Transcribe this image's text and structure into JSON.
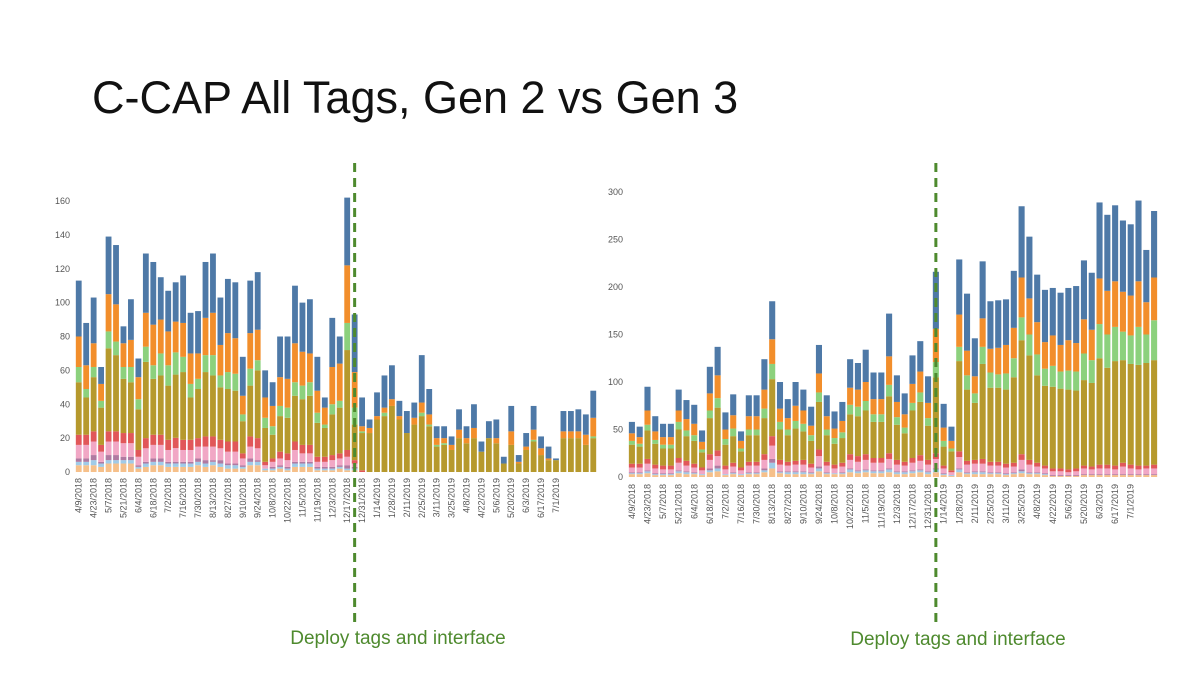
{
  "title": "C-CAP All Tags, Gen 2 vs Gen 3",
  "colors": {
    "blue": "#4e79a7",
    "orange": "#f28e2b",
    "green_light": "#8cd17d",
    "olive": "#b6992d",
    "red": "#e15759",
    "pink": "#f1a7c5",
    "peach": "#f6c08a",
    "lightblue": "#a0cbe8",
    "purple": "#b07aa1",
    "deploy_line": "#4e8a2e",
    "axis_text": "#555555"
  },
  "chart_data": [
    {
      "type": "bar",
      "stacked": true,
      "title": "",
      "xlabel": "",
      "ylabel": "",
      "ylim": [
        0,
        160
      ],
      "yticks": [
        0,
        20,
        40,
        60,
        80,
        100,
        120,
        140,
        160
      ],
      "x_tick_labels": [
        "4/9/2018",
        "4/23/2018",
        "5/7/2018",
        "5/21/2018",
        "6/4/2018",
        "6/18/2018",
        "7/2/2018",
        "7/16/2018",
        "7/30/2018",
        "8/13/2018",
        "8/27/2018",
        "9/10/2018",
        "9/24/2018",
        "10/8/2018",
        "10/22/2018",
        "11/5/2018",
        "11/19/2018",
        "12/3/2018",
        "12/17/2018",
        "12/31/2018",
        "1/14/2019",
        "1/28/2019",
        "2/11/2019",
        "2/25/2019",
        "3/11/2019",
        "3/25/2019",
        "4/8/2019",
        "4/22/2019",
        "5/6/2019",
        "5/20/2019",
        "6/3/2019",
        "6/17/2019",
        "7/1/2019"
      ],
      "totals": [
        113,
        88,
        103,
        62,
        139,
        134,
        86,
        102,
        67,
        129,
        124,
        115,
        107,
        112,
        116,
        94,
        95,
        124,
        129,
        103,
        114,
        112,
        68,
        113,
        118,
        60,
        53,
        80,
        80,
        110,
        100,
        102,
        68,
        44,
        91,
        80,
        162,
        93,
        44,
        31,
        47,
        57,
        63,
        42,
        36,
        41,
        69,
        49,
        27,
        27,
        21,
        37,
        27,
        40,
        18,
        30,
        31,
        9,
        39,
        10,
        23,
        39,
        21,
        15,
        8,
        36,
        36,
        37,
        34,
        48
      ],
      "blue": [
        33,
        25,
        27,
        10,
        34,
        35,
        10,
        24,
        11,
        35,
        37,
        25,
        24,
        23,
        28,
        24,
        25,
        33,
        35,
        28,
        32,
        33,
        23,
        31,
        34,
        16,
        14,
        24,
        25,
        34,
        29,
        32,
        20,
        6,
        29,
        16,
        40,
        34,
        17,
        5,
        14,
        19,
        20,
        9,
        13,
        9,
        28,
        15,
        7,
        7,
        5,
        12,
        7,
        14,
        6,
        10,
        11,
        4,
        15,
        4,
        8,
        14,
        7,
        7,
        1,
        12,
        12,
        13,
        12,
        16
      ],
      "orange": [
        18,
        14,
        14,
        10,
        22,
        22,
        14,
        16,
        13,
        20,
        24,
        20,
        20,
        18,
        20,
        18,
        15,
        22,
        25,
        18,
        23,
        21,
        11,
        21,
        18,
        12,
        12,
        17,
        17,
        23,
        20,
        17,
        13,
        10,
        22,
        22,
        34,
        21,
        3,
        3,
        2,
        3,
        4,
        2,
        0,
        4,
        6,
        6,
        4,
        3,
        3,
        5,
        3,
        6,
        0,
        0,
        3,
        0,
        8,
        1,
        2,
        6,
        4,
        1,
        0,
        4,
        4,
        4,
        6,
        11
      ],
      "green_light": [
        9,
        5,
        6,
        4,
        10,
        8,
        7,
        9,
        6,
        9,
        8,
        13,
        12,
        13,
        9,
        8,
        6,
        10,
        12,
        7,
        10,
        10,
        4,
        10,
        6,
        6,
        5,
        6,
        6,
        8,
        8,
        8,
        6,
        2,
        6,
        4,
        16,
        10,
        1,
        0,
        0,
        2,
        0,
        0,
        0,
        0,
        2,
        1,
        1,
        1,
        0,
        0,
        0,
        0,
        0,
        0,
        0,
        0,
        0,
        0,
        0,
        1,
        0,
        0,
        0,
        0,
        0,
        0,
        0,
        1
      ],
      "olive": [
        31,
        22,
        32,
        22,
        49,
        45,
        32,
        30,
        24,
        45,
        33,
        35,
        32,
        37,
        40,
        25,
        29,
        38,
        36,
        31,
        31,
        30,
        19,
        30,
        40,
        20,
        14,
        21,
        21,
        27,
        27,
        29,
        20,
        17,
        24,
        27,
        59,
        21,
        22,
        23,
        31,
        33,
        39,
        31,
        23,
        28,
        33,
        27,
        15,
        16,
        13,
        20,
        17,
        20,
        12,
        20,
        17,
        5,
        16,
        5,
        13,
        18,
        10,
        7,
        7,
        20,
        20,
        20,
        16,
        20
      ],
      "red": [
        6,
        6,
        6,
        4,
        6,
        6,
        6,
        6,
        4,
        6,
        6,
        6,
        6,
        6,
        6,
        6,
        5,
        6,
        6,
        5,
        6,
        6,
        3,
        6,
        6,
        2,
        2,
        4,
        4,
        5,
        5,
        5,
        3,
        3,
        3,
        3,
        4,
        2,
        1,
        0,
        0,
        0,
        0,
        0,
        0,
        0,
        0,
        0,
        0,
        0,
        0,
        0,
        0,
        0,
        0,
        0,
        0,
        0,
        0,
        0,
        0,
        0,
        0,
        0,
        0,
        0,
        0,
        0,
        0,
        0
      ],
      "pink": [
        8,
        8,
        8,
        6,
        8,
        8,
        8,
        8,
        5,
        8,
        8,
        8,
        7,
        8,
        7,
        7,
        7,
        8,
        8,
        7,
        7,
        7,
        4,
        7,
        7,
        2,
        3,
        4,
        4,
        7,
        5,
        5,
        3,
        3,
        4,
        4,
        5,
        2,
        0,
        0,
        0,
        0,
        0,
        0,
        0,
        0,
        0,
        0,
        0,
        0,
        0,
        0,
        0,
        0,
        0,
        0,
        0,
        0,
        0,
        0,
        0,
        0,
        0,
        0,
        0,
        0,
        0,
        0,
        0,
        0
      ],
      "peach": [
        4,
        4,
        4,
        3,
        5,
        5,
        5,
        5,
        2,
        3,
        4,
        4,
        3,
        3,
        3,
        3,
        4,
        3,
        4,
        3,
        2,
        2,
        2,
        4,
        4,
        1,
        1,
        2,
        1,
        3,
        3,
        3,
        1,
        1,
        1,
        2,
        1,
        1,
        0,
        0,
        0,
        0,
        0,
        0,
        0,
        0,
        0,
        0,
        0,
        0,
        0,
        0,
        0,
        0,
        0,
        0,
        0,
        0,
        0,
        0,
        0,
        0,
        0,
        0,
        0,
        0,
        0,
        0,
        0,
        0
      ],
      "lightblue": [
        2,
        2,
        3,
        2,
        2,
        2,
        2,
        2,
        1,
        2,
        2,
        2,
        2,
        2,
        2,
        2,
        2,
        2,
        2,
        2,
        2,
        2,
        1,
        2,
        2,
        1,
        1,
        1,
        1,
        2,
        2,
        2,
        1,
        1,
        1,
        1,
        1,
        1,
        0,
        0,
        0,
        0,
        0,
        0,
        0,
        0,
        0,
        0,
        0,
        0,
        0,
        0,
        0,
        0,
        0,
        0,
        0,
        0,
        0,
        0,
        0,
        0,
        0,
        0,
        0,
        0,
        0,
        0,
        0,
        0
      ],
      "purple": [
        2,
        2,
        3,
        1,
        3,
        3,
        2,
        2,
        1,
        1,
        2,
        2,
        1,
        1,
        1,
        1,
        2,
        2,
        1,
        2,
        1,
        1,
        1,
        2,
        1,
        0,
        1,
        1,
        1,
        1,
        1,
        1,
        1,
        1,
        1,
        1,
        2,
        1,
        0,
        0,
        0,
        0,
        0,
        0,
        0,
        0,
        0,
        0,
        0,
        0,
        0,
        0,
        0,
        0,
        0,
        0,
        0,
        0,
        0,
        0,
        0,
        0,
        0,
        0,
        0,
        0,
        0,
        0,
        0,
        0
      ],
      "deploy_after_bar": 37,
      "annotation": "Deploy tags and interface"
    },
    {
      "type": "bar",
      "stacked": true,
      "title": "",
      "xlabel": "",
      "ylabel": "",
      "ylim": [
        0,
        300
      ],
      "yticks": [
        0,
        50,
        100,
        150,
        200,
        250,
        300
      ],
      "x_tick_labels": [
        "4/9/2018",
        "4/23/2018",
        "5/7/2018",
        "5/21/2018",
        "6/4/2018",
        "6/18/2018",
        "7/2/2018",
        "7/16/2018",
        "7/30/2018",
        "8/13/2018",
        "8/27/2018",
        "9/10/2018",
        "9/24/2018",
        "10/8/2018",
        "10/22/2018",
        "11/5/2018",
        "11/19/2018",
        "12/3/2018",
        "12/17/2018",
        "12/31/2018",
        "1/14/2019",
        "1/28/2019",
        "2/11/2019",
        "2/25/2019",
        "3/11/2019",
        "3/25/2019",
        "4/8/2019",
        "4/22/2019",
        "5/6/2019",
        "5/20/2019",
        "6/3/2019",
        "6/17/2019",
        "7/1/2019"
      ],
      "totals": [
        58,
        53,
        95,
        64,
        56,
        56,
        92,
        81,
        76,
        49,
        116,
        137,
        68,
        87,
        48,
        86,
        86,
        124,
        185,
        100,
        82,
        100,
        92,
        74,
        139,
        86,
        69,
        79,
        124,
        120,
        134,
        110,
        110,
        172,
        107,
        88,
        128,
        143,
        106,
        216,
        77,
        53,
        229,
        193,
        146,
        227,
        185,
        186,
        187,
        217,
        285,
        253,
        213,
        197,
        199,
        194,
        199,
        201,
        228,
        215,
        289,
        276,
        286,
        270,
        266,
        291,
        239,
        280
      ],
      "blue": [
        12,
        11,
        25,
        16,
        14,
        14,
        22,
        20,
        20,
        12,
        28,
        30,
        18,
        22,
        10,
        22,
        22,
        32,
        40,
        28,
        20,
        25,
        22,
        20,
        30,
        22,
        18,
        20,
        30,
        28,
        34,
        28,
        28,
        45,
        28,
        22,
        30,
        32,
        28,
        60,
        25,
        15,
        58,
        60,
        40,
        60,
        50,
        50,
        48,
        60,
        75,
        65,
        50,
        55,
        50,
        55,
        55,
        60,
        62,
        60,
        80,
        80,
        80,
        75,
        75,
        85,
        55,
        70
      ],
      "orange": [
        8,
        7,
        15,
        9,
        8,
        8,
        12,
        12,
        12,
        8,
        18,
        24,
        10,
        14,
        8,
        14,
        14,
        20,
        26,
        14,
        12,
        16,
        14,
        10,
        20,
        14,
        10,
        12,
        18,
        18,
        20,
        16,
        16,
        30,
        16,
        14,
        20,
        22,
        16,
        35,
        14,
        8,
        34,
        26,
        18,
        30,
        25,
        28,
        30,
        32,
        42,
        38,
        34,
        28,
        32,
        28,
        32,
        30,
        36,
        32,
        48,
        46,
        48,
        42,
        42,
        48,
        34,
        45
      ],
      "green_light": [
        4,
        3,
        6,
        4,
        4,
        4,
        8,
        6,
        6,
        3,
        8,
        10,
        6,
        8,
        3,
        6,
        6,
        10,
        16,
        8,
        6,
        8,
        8,
        6,
        10,
        6,
        6,
        6,
        10,
        10,
        10,
        8,
        8,
        12,
        8,
        6,
        8,
        10,
        8,
        16,
        6,
        3,
        15,
        15,
        10,
        18,
        16,
        14,
        17,
        20,
        24,
        22,
        22,
        18,
        22,
        18,
        20,
        20,
        28,
        24,
        36,
        35,
        36,
        30,
        30,
        40,
        30,
        42
      ],
      "olive": [
        20,
        18,
        30,
        22,
        18,
        18,
        30,
        26,
        24,
        16,
        38,
        45,
        22,
        28,
        17,
        28,
        28,
        38,
        60,
        32,
        28,
        34,
        30,
        24,
        50,
        28,
        22,
        26,
        42,
        42,
        46,
        38,
        38,
        60,
        37,
        30,
        50,
        56,
        36,
        80,
        20,
        20,
        95,
        75,
        60,
        100,
        78,
        78,
        78,
        90,
        120,
        110,
        92,
        84,
        86,
        84,
        84,
        82,
        90,
        88,
        112,
        102,
        110,
        108,
        106,
        106,
        108,
        110
      ],
      "red": [
        4,
        4,
        5,
        4,
        4,
        4,
        5,
        5,
        4,
        3,
        6,
        6,
        4,
        4,
        3,
        4,
        4,
        6,
        10,
        5,
        4,
        4,
        5,
        4,
        7,
        4,
        4,
        4,
        6,
        6,
        6,
        5,
        5,
        6,
        5,
        4,
        5,
        6,
        5,
        6,
        3,
        2,
        6,
        4,
        4,
        5,
        4,
        4,
        4,
        4,
        6,
        5,
        4,
        3,
        3,
        3,
        3,
        3,
        3,
        3,
        4,
        4,
        4,
        4,
        4,
        4,
        3,
        4
      ],
      "pink": [
        5,
        5,
        7,
        5,
        4,
        4,
        8,
        6,
        5,
        4,
        9,
        10,
        5,
        6,
        4,
        7,
        7,
        9,
        14,
        7,
        6,
        7,
        7,
        5,
        11,
        7,
        5,
        6,
        9,
        9,
        10,
        8,
        8,
        10,
        7,
        6,
        8,
        9,
        7,
        10,
        5,
        3,
        12,
        8,
        8,
        8,
        7,
        7,
        6,
        6,
        10,
        8,
        6,
        5,
        4,
        4,
        3,
        4,
        6,
        5,
        6,
        6,
        5,
        8,
        6,
        5,
        6,
        6
      ],
      "peach": [
        3,
        3,
        4,
        2,
        2,
        2,
        4,
        3,
        3,
        2,
        5,
        6,
        2,
        3,
        2,
        3,
        3,
        5,
        9,
        4,
        3,
        3,
        3,
        3,
        6,
        3,
        3,
        3,
        5,
        4,
        5,
        4,
        4,
        5,
        3,
        3,
        4,
        5,
        3,
        5,
        2,
        1,
        5,
        3,
        3,
        3,
        3,
        3,
        2,
        3,
        4,
        3,
        3,
        2,
        1,
        1,
        1,
        1,
        2,
        2,
        2,
        2,
        2,
        2,
        2,
        2,
        2,
        2
      ],
      "lightblue": [
        1,
        1,
        2,
        1,
        1,
        1,
        2,
        2,
        1,
        1,
        2,
        3,
        1,
        1,
        1,
        1,
        1,
        2,
        6,
        1,
        2,
        2,
        2,
        1,
        3,
        1,
        1,
        1,
        3,
        2,
        2,
        2,
        2,
        3,
        2,
        2,
        2,
        2,
        2,
        3,
        1,
        1,
        3,
        1,
        2,
        2,
        1,
        1,
        1,
        1,
        2,
        1,
        1,
        1,
        0,
        0,
        0,
        0,
        0,
        0,
        0,
        0,
        0,
        0,
        0,
        0,
        0,
        0
      ],
      "purple": [
        1,
        1,
        1,
        1,
        1,
        1,
        1,
        1,
        1,
        0,
        2,
        3,
        0,
        1,
        0,
        1,
        1,
        2,
        4,
        1,
        1,
        1,
        1,
        1,
        2,
        1,
        0,
        1,
        1,
        1,
        1,
        1,
        1,
        1,
        1,
        1,
        1,
        1,
        1,
        1,
        1,
        0,
        1,
        1,
        1,
        1,
        1,
        1,
        1,
        1,
        2,
        1,
        1,
        1,
        1,
        1,
        1,
        1,
        1,
        1,
        1,
        1,
        1,
        1,
        1,
        1,
        1,
        1
      ],
      "deploy_after_bar": 39,
      "annotation": "Deploy tags and interface"
    }
  ]
}
